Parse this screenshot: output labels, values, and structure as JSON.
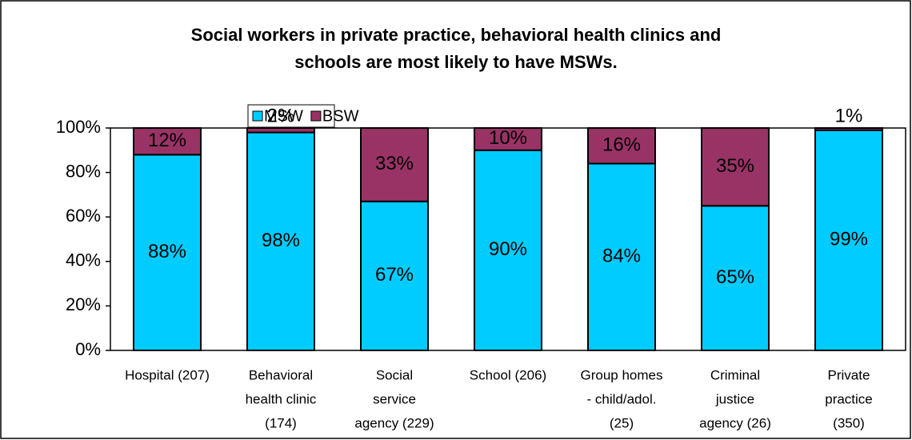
{
  "chart_data": {
    "type": "stacked_bar",
    "title": [
      "Social workers in private practice, behavioral health clinics and",
      "schools are most likely to have MSWs."
    ],
    "categories": [
      [
        "Hospital (207)"
      ],
      [
        "Behavioral",
        "health clinic",
        "(174)"
      ],
      [
        "Social",
        "service",
        "agency (229)"
      ],
      [
        "School (206)"
      ],
      [
        "Group homes",
        "- child/adol.",
        "(25)"
      ],
      [
        "Criminal",
        "justice",
        "agency (26)"
      ],
      [
        "Private",
        "practice",
        "(350)"
      ]
    ],
    "series": [
      {
        "name": "MSW",
        "color": "#00ccff",
        "values": [
          88,
          98,
          67,
          90,
          84,
          65,
          99
        ],
        "value_labels": [
          "88%",
          "98%",
          "67%",
          "90%",
          "84%",
          "65%",
          "99%"
        ]
      },
      {
        "name": "BSW",
        "color": "#993366",
        "values": [
          12,
          2,
          33,
          10,
          16,
          35,
          1
        ],
        "value_labels": [
          "12%",
          "2%",
          "33%",
          "10%",
          "16%",
          "35%",
          "1%"
        ]
      }
    ],
    "ylim": [
      0,
      100
    ],
    "yticks": [
      {
        "value": 0,
        "label": "0%"
      },
      {
        "value": 20,
        "label": "20%"
      },
      {
        "value": 40,
        "label": "40%"
      },
      {
        "value": 60,
        "label": "60%"
      },
      {
        "value": 80,
        "label": "80%"
      },
      {
        "value": 100,
        "label": "100%"
      }
    ],
    "legend": "top"
  }
}
